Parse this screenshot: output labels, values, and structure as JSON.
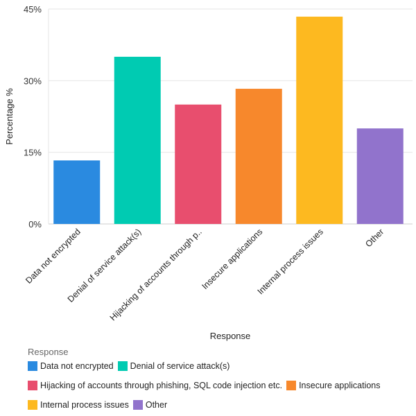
{
  "chart_data": {
    "type": "bar",
    "title": "",
    "xlabel": "Response",
    "ylabel": "Percentage %",
    "ylim": [
      0,
      45
    ],
    "yticks": [
      0,
      15,
      30,
      45
    ],
    "ytick_labels": [
      "0%",
      "15%",
      "30%",
      "45%"
    ],
    "grid": true,
    "categories": [
      "Data not encrypted",
      "Denial of service attack(s)",
      "Hijacking of accounts through p..",
      "Insecure applications",
      "Internal process issues",
      "Other"
    ],
    "values": [
      13.3,
      35.0,
      25.0,
      28.3,
      43.4,
      20.0
    ],
    "colors": [
      "#2a8ae0",
      "#00cbb2",
      "#e84e6e",
      "#f7882c",
      "#fdb920",
      "#9173cc"
    ],
    "legend": {
      "title": "Response",
      "placement": "bottom-left",
      "entries": [
        "Data not encrypted",
        "Denial of service attack(s)",
        "Hijacking of accounts through phishing, SQL code injection etc.",
        "Insecure applications",
        "Internal process issues",
        "Other"
      ]
    }
  }
}
